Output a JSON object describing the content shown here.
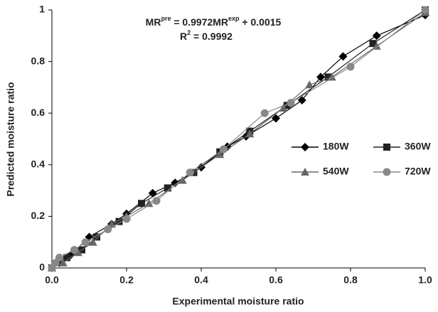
{
  "chart_data": {
    "type": "line",
    "annotation": {
      "equation": [
        "MR",
        "pre",
        " = 0.9972MR",
        "exp",
        " + 0.0015"
      ],
      "r2": [
        "R",
        "2",
        " = 0.9992"
      ]
    },
    "x_label": "Experimental moisture ratio",
    "y_label": "Predicted moisture ratio",
    "xlim": [
      0,
      1
    ],
    "ylim": [
      0,
      1
    ],
    "xticks": [
      {
        "value": 0,
        "label": "0.0"
      },
      {
        "value": 0.2,
        "label": "0.2"
      },
      {
        "value": 0.4,
        "label": "0.4"
      },
      {
        "value": 0.6,
        "label": "0.6"
      },
      {
        "value": 0.8,
        "label": "0.8"
      },
      {
        "value": 1,
        "label": "1.0"
      }
    ],
    "yticks": [
      0,
      0.2,
      0.4,
      0.6,
      0.8,
      1
    ],
    "grid": false,
    "legend": "right",
    "series": [
      {
        "name": "180W",
        "color": "#000000",
        "marker": "diamond",
        "x": [
          0,
          0.02,
          0.05,
          0.1,
          0.16,
          0.2,
          0.27,
          0.33,
          0.4,
          0.47,
          0.52,
          0.6,
          0.67,
          0.72,
          0.78,
          0.87,
          1.0
        ],
        "values": [
          0,
          0.02,
          0.05,
          0.12,
          0.17,
          0.21,
          0.29,
          0.33,
          0.39,
          0.47,
          0.51,
          0.58,
          0.65,
          0.74,
          0.82,
          0.9,
          0.98
        ]
      },
      {
        "name": "360W",
        "color": "#222222",
        "marker": "square",
        "x": [
          0,
          0.04,
          0.08,
          0.12,
          0.18,
          0.24,
          0.31,
          0.38,
          0.45,
          0.53,
          0.63,
          0.74,
          0.86,
          1.0
        ],
        "values": [
          0,
          0.04,
          0.07,
          0.12,
          0.18,
          0.25,
          0.31,
          0.37,
          0.45,
          0.53,
          0.63,
          0.74,
          0.87,
          1.0
        ]
      },
      {
        "name": "540W",
        "color": "#666666",
        "marker": "triangle",
        "x": [
          0,
          0.03,
          0.07,
          0.11,
          0.16,
          0.2,
          0.26,
          0.35,
          0.45,
          0.53,
          0.62,
          0.69,
          0.75,
          0.87,
          1.0
        ],
        "values": [
          0,
          0.02,
          0.06,
          0.1,
          0.17,
          0.2,
          0.25,
          0.34,
          0.44,
          0.52,
          0.62,
          0.71,
          0.74,
          0.86,
          0.99
        ]
      },
      {
        "name": "720W",
        "color": "#888888",
        "marker": "circle",
        "x": [
          0,
          0.01,
          0.02,
          0.06,
          0.09,
          0.15,
          0.2,
          0.28,
          0.37,
          0.46,
          0.57,
          0.64,
          0.8,
          1.0
        ],
        "values": [
          0,
          0.02,
          0.04,
          0.07,
          0.1,
          0.15,
          0.19,
          0.26,
          0.37,
          0.46,
          0.6,
          0.64,
          0.78,
          1.0
        ]
      }
    ]
  }
}
